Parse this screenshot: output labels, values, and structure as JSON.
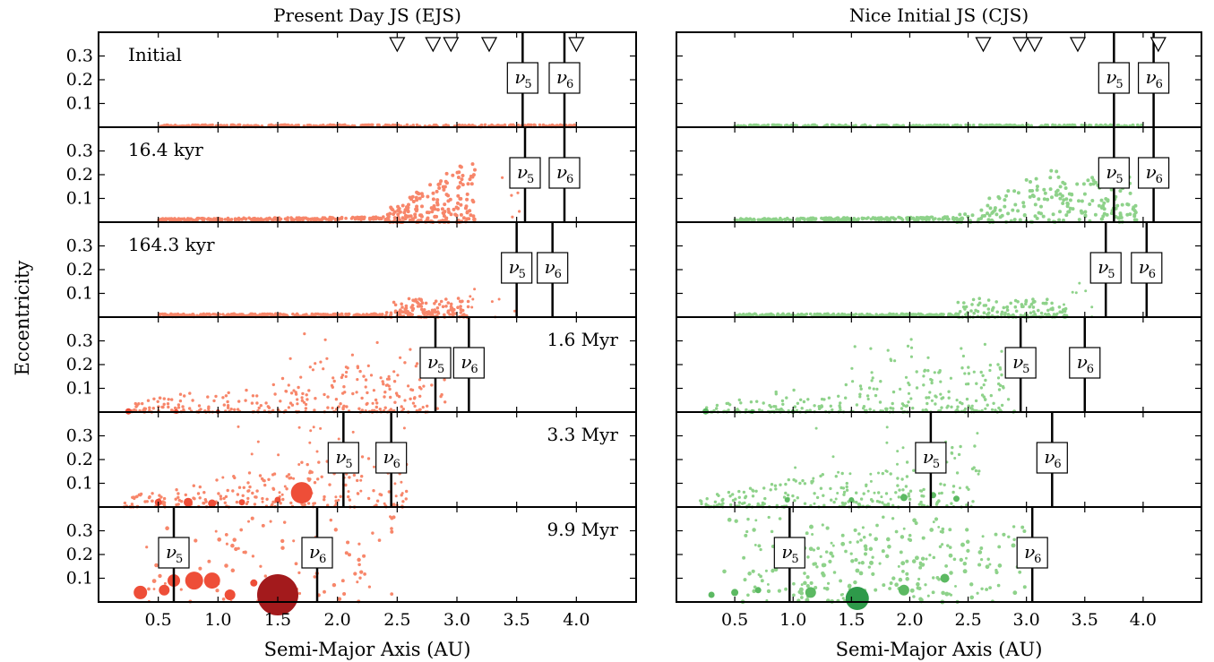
{
  "figure": {
    "ylabel": "Eccentricity",
    "xlabel": "Semi-Major Axis (AU)",
    "xticks": [
      0.5,
      1.0,
      1.5,
      2.0,
      2.5,
      3.0,
      3.5,
      4.0
    ],
    "xtick_labels": [
      "0.5",
      "1.0",
      "1.5",
      "2.0",
      "2.5",
      "3.0",
      "3.5",
      "4.0"
    ],
    "yticks": [
      0.1,
      0.2,
      0.3
    ],
    "ytick_labels": [
      "0.1",
      "0.2",
      "0.3"
    ],
    "resonance_symbol": "ν",
    "resonance_subscripts": [
      "5",
      "6"
    ]
  },
  "chart_data": [
    {
      "type": "scatter",
      "title": "Present Day JS (EJS)",
      "xlim": [
        0.0,
        4.5
      ],
      "ylim": [
        0.0,
        0.4
      ],
      "colors": {
        "small": "#f7866a",
        "medium": "#ee4e38",
        "large": "#a31a1c"
      },
      "embryo_markers_au": [
        2.5,
        2.8,
        2.95,
        3.27,
        4.0
      ],
      "panels": [
        {
          "time": "Initial",
          "label_pos": "left",
          "nu5": 3.55,
          "nu6": 3.9
        },
        {
          "time": "16.4 kyr",
          "label_pos": "left",
          "nu5": 3.57,
          "nu6": 3.9
        },
        {
          "time": "164.3 kyr",
          "label_pos": "left",
          "nu5": 3.5,
          "nu6": 3.8
        },
        {
          "time": "1.6 Myr",
          "label_pos": "right",
          "nu5": 2.82,
          "nu6": 3.1
        },
        {
          "time": "3.3 Myr",
          "label_pos": "right",
          "nu5": 2.05,
          "nu6": 2.45
        },
        {
          "time": "9.9 Myr",
          "label_pos": "right",
          "nu5": 0.63,
          "nu6": 1.83
        }
      ]
    },
    {
      "type": "scatter",
      "title": "Nice Initial JS (CJS)",
      "xlim": [
        0.0,
        4.5
      ],
      "ylim": [
        0.0,
        0.4
      ],
      "colors": {
        "small": "#8ed28a",
        "medium": "#5cb962",
        "large": "#2e9a4a"
      },
      "embryo_markers_au": [
        2.63,
        2.95,
        3.07,
        3.44,
        4.13
      ],
      "panels": [
        {
          "time": "",
          "nu5": 3.75,
          "nu6": 4.09
        },
        {
          "time": "",
          "nu5": 3.75,
          "nu6": 4.09
        },
        {
          "time": "",
          "nu5": 3.68,
          "nu6": 4.03
        },
        {
          "time": "",
          "nu5": 2.95,
          "nu6": 3.5
        },
        {
          "time": "",
          "nu5": 2.18,
          "nu6": 3.22
        },
        {
          "time": "",
          "nu5": 0.97,
          "nu6": 3.05
        }
      ]
    }
  ]
}
